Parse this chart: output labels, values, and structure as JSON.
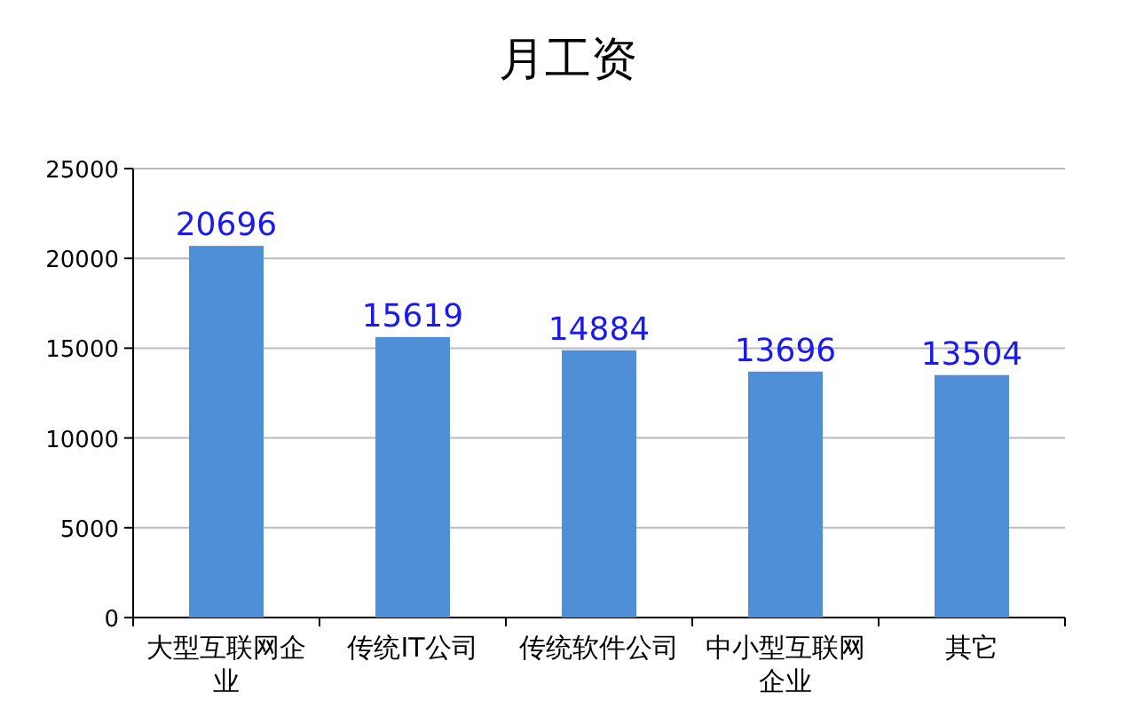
{
  "chart_data": {
    "type": "bar",
    "title": "月工资",
    "categories": [
      "大型互联网企业",
      "传统IT公司",
      "传统软件公司",
      "中小型互联网企业",
      "其它"
    ],
    "values": [
      20696,
      15619,
      14884,
      13696,
      13504
    ],
    "color": "#4f8fd8",
    "ylim": [
      0,
      25000
    ],
    "yticks": [
      0,
      5000,
      10000,
      15000,
      20000,
      25000
    ],
    "grid": "y",
    "data_labels": true
  }
}
